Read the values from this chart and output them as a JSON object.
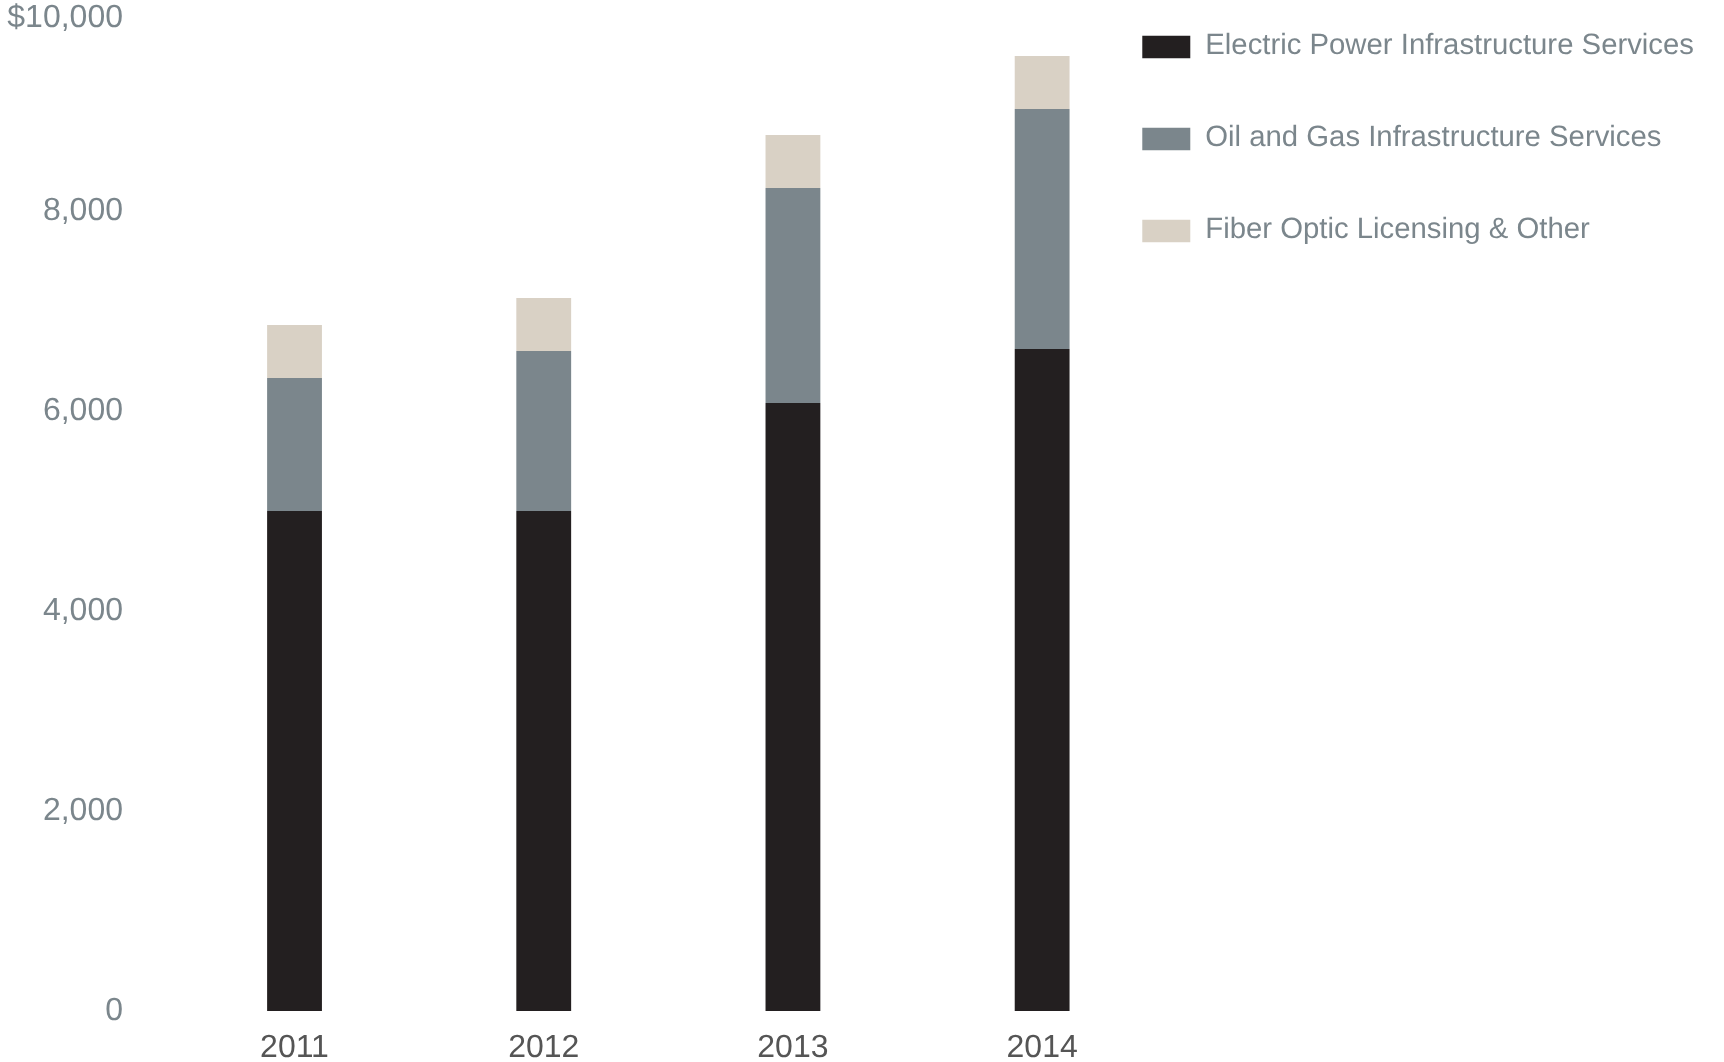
{
  "chart_data": {
    "type": "bar",
    "stacked": true,
    "categories": [
      "2011",
      "2012",
      "2013",
      "2014"
    ],
    "series": [
      {
        "name": "Electric Power Infrastructure Services",
        "color": "#231f20",
        "values": [
          5000,
          5000,
          6080,
          6620
        ]
      },
      {
        "name": "Oil and Gas Infrastructure Services",
        "color": "#7b868c",
        "values": [
          1330,
          1600,
          2150,
          2400
        ]
      },
      {
        "name": "Fiber Optic Licensing & Other",
        "color": "#d9d1c5",
        "values": [
          530,
          530,
          530,
          530
        ]
      }
    ],
    "ylim": [
      0,
      10000
    ],
    "yticks": [
      {
        "value": 0,
        "label": "0"
      },
      {
        "value": 2000,
        "label": "2,000"
      },
      {
        "value": 4000,
        "label": "4,000"
      },
      {
        "value": 6000,
        "label": "6,000"
      },
      {
        "value": 8000,
        "label": "8,000"
      },
      {
        "value": 10000,
        "label": "$10,000"
      }
    ],
    "grid": false,
    "legend": "right"
  }
}
